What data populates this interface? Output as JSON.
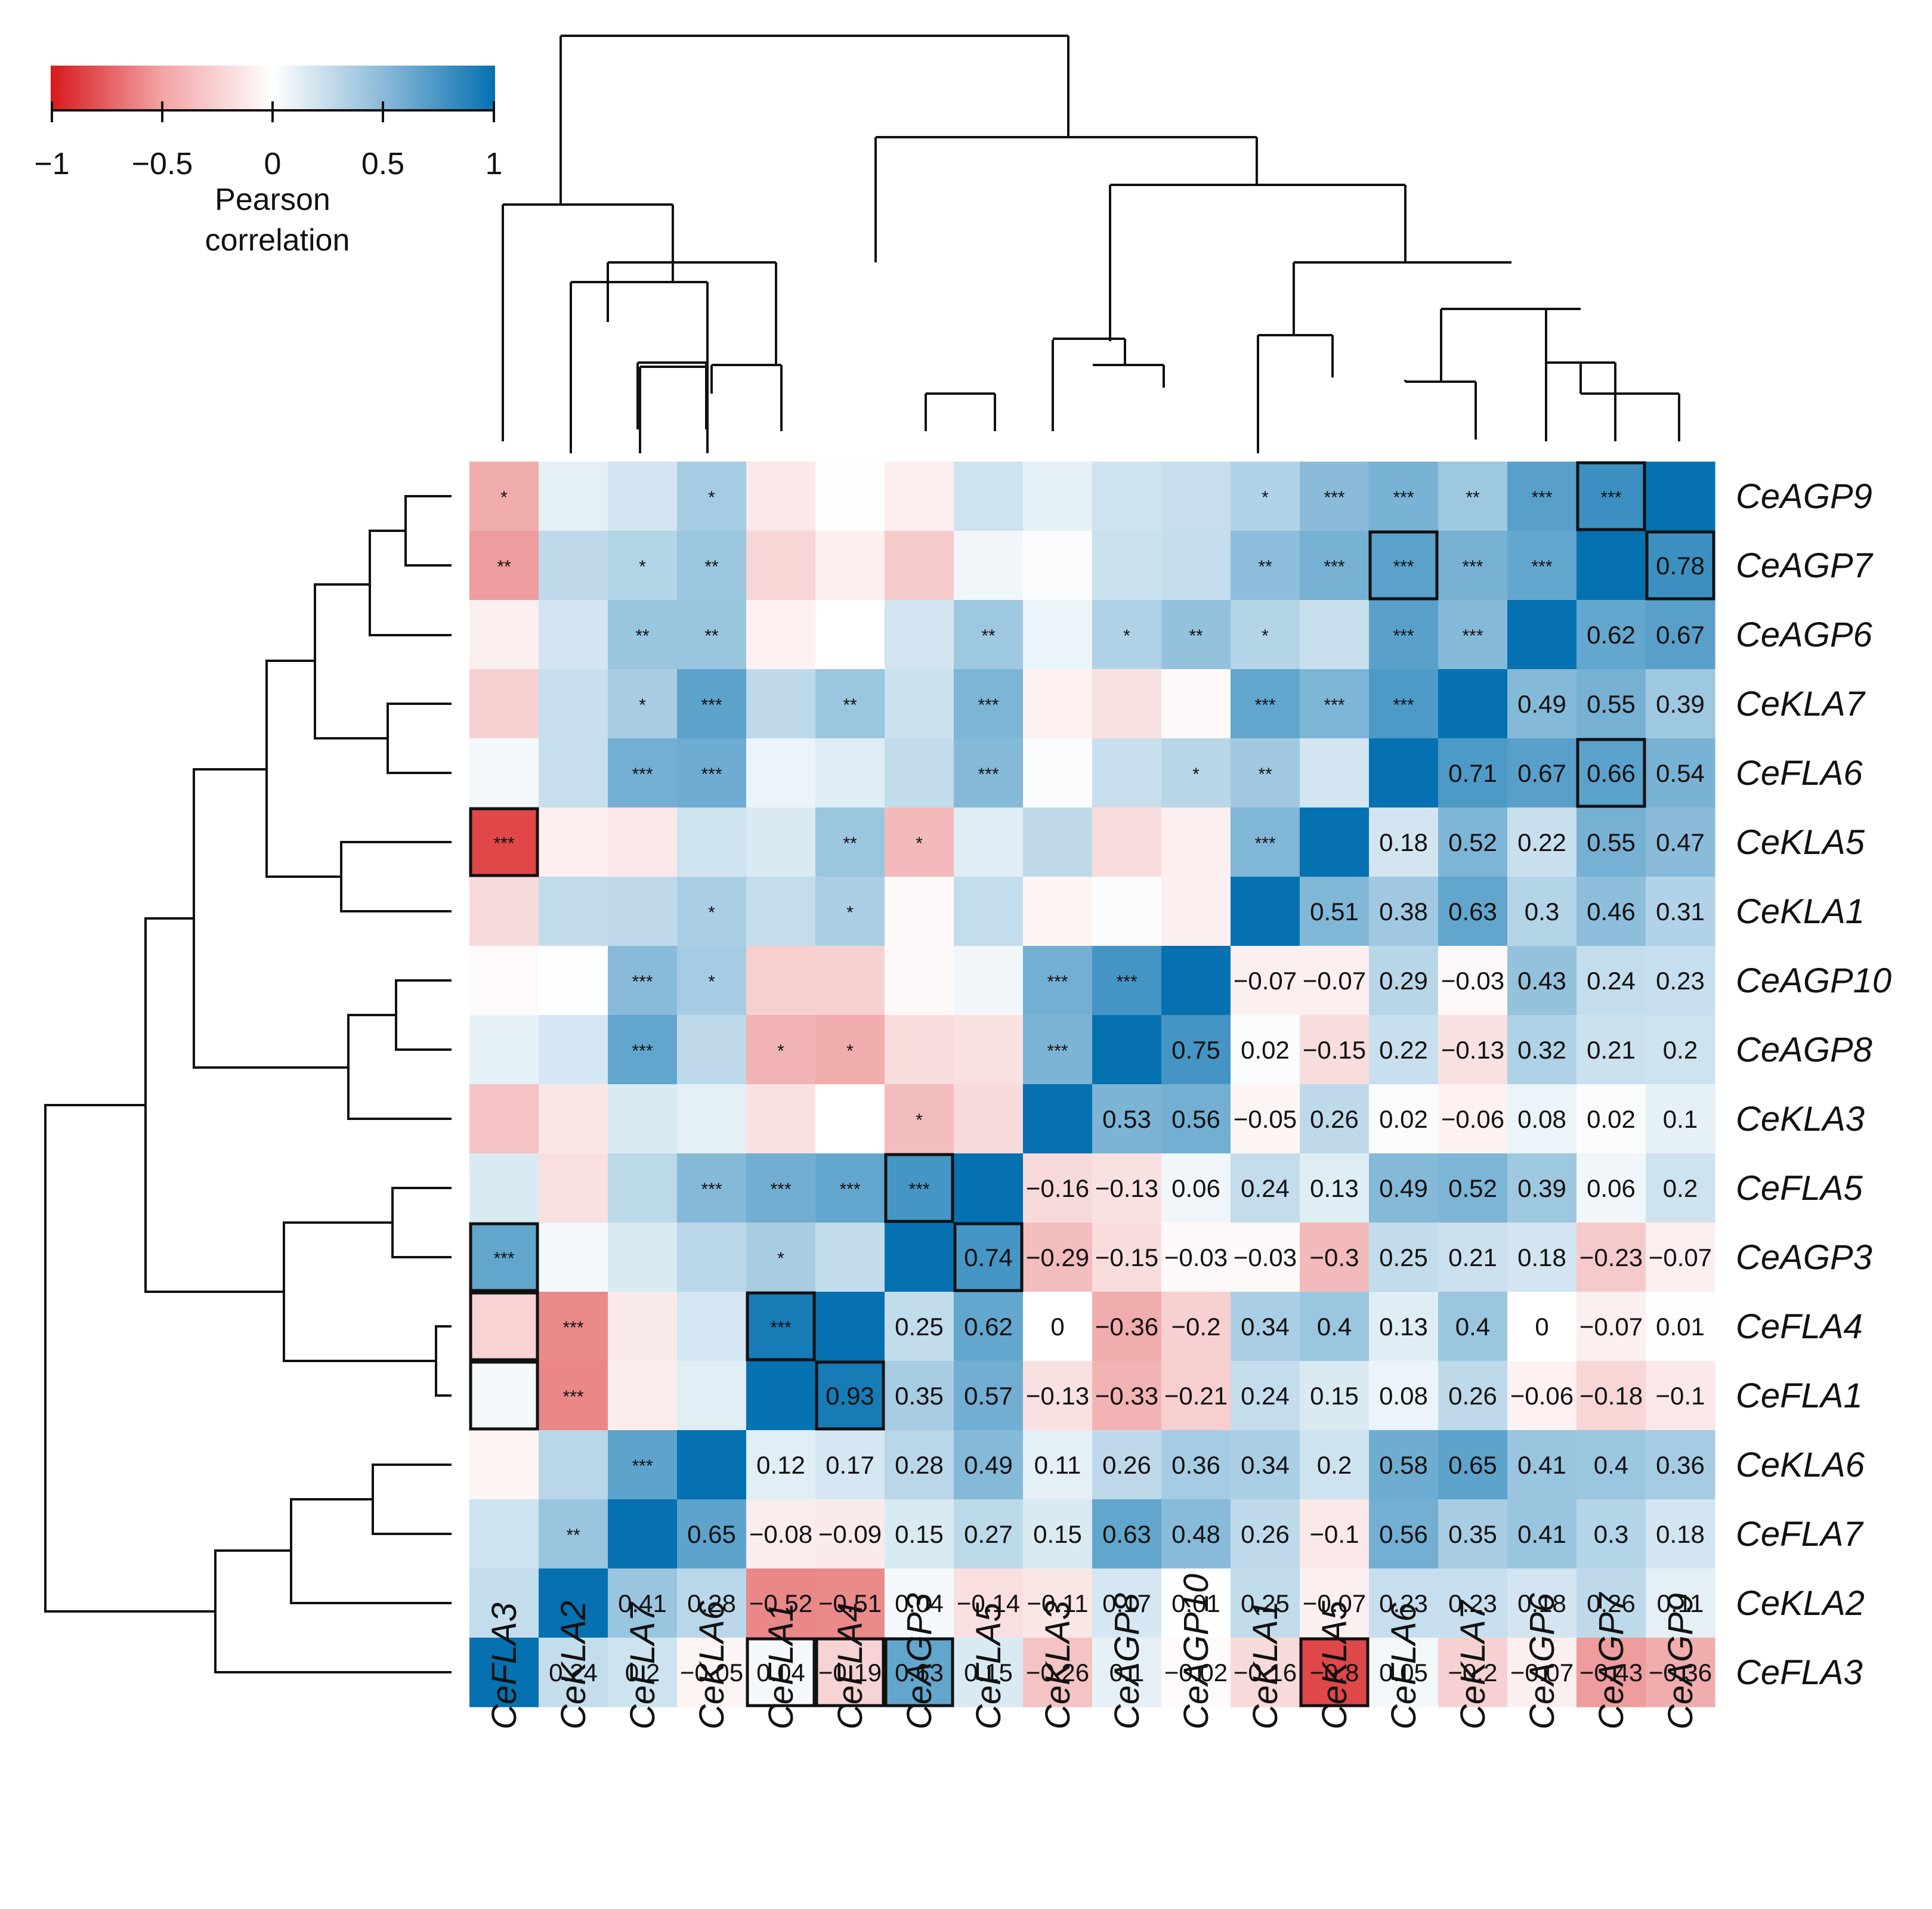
{
  "chart_data": {
    "type": "heatmap",
    "columns": [
      "CeFLA3",
      "CeKLA2",
      "CeFLA7",
      "CeKLA6",
      "CeFLA1",
      "CeFLA4",
      "CeAGP3",
      "CeFLA5",
      "CeKLA3",
      "CeAGP8",
      "CeAGP10",
      "CeKLA1",
      "CeKLA5",
      "CeFLA6",
      "CeKLA7",
      "CeAGP6",
      "CeAGP7",
      "CeAGP9"
    ],
    "rows": [
      "CeAGP9",
      "CeAGP7",
      "CeAGP6",
      "CeKLA7",
      "CeFLA6",
      "CeKLA5",
      "CeKLA1",
      "CeAGP10",
      "CeAGP8",
      "CeKLA3",
      "CeFLA5",
      "CeAGP3",
      "CeFLA4",
      "CeFLA1",
      "CeKLA6",
      "CeFLA7",
      "CeKLA2",
      "CeFLA3"
    ],
    "values": [
      [
        -0.36,
        0.11,
        0.18,
        0.36,
        -0.1,
        0.01,
        -0.07,
        0.2,
        0.1,
        0.2,
        0.23,
        0.31,
        0.47,
        0.54,
        0.39,
        0.67,
        0.78,
        1
      ],
      [
        -0.43,
        0.26,
        0.3,
        0.4,
        -0.18,
        -0.07,
        -0.23,
        0.06,
        0.02,
        0.21,
        0.24,
        0.46,
        0.55,
        0.66,
        0.55,
        0.62,
        1,
        0.78
      ],
      [
        -0.07,
        0.18,
        0.41,
        0.41,
        -0.06,
        0,
        0.18,
        0.39,
        0.08,
        0.32,
        0.43,
        0.3,
        0.22,
        0.67,
        0.49,
        1,
        0.62,
        0.67
      ],
      [
        -0.2,
        0.23,
        0.35,
        0.65,
        0.26,
        0.4,
        0.21,
        0.52,
        -0.06,
        -0.13,
        -0.03,
        0.63,
        0.52,
        0.71,
        1,
        0.49,
        0.55,
        0.39
      ],
      [
        0.05,
        0.23,
        0.56,
        0.58,
        0.08,
        0.13,
        0.25,
        0.49,
        0.02,
        0.22,
        0.29,
        0.38,
        0.18,
        1,
        0.71,
        0.67,
        0.66,
        0.54
      ],
      [
        -0.8,
        -0.07,
        -0.1,
        0.2,
        0.15,
        0.4,
        -0.3,
        0.13,
        0.26,
        -0.15,
        -0.07,
        0.51,
        1,
        0.18,
        0.52,
        0.22,
        0.55,
        0.47
      ],
      [
        -0.16,
        0.25,
        0.26,
        0.34,
        0.24,
        0.34,
        -0.03,
        0.24,
        -0.05,
        0.02,
        -0.07,
        1,
        0.51,
        0.38,
        0.63,
        0.3,
        0.46,
        0.31
      ],
      [
        -0.02,
        0.01,
        0.48,
        0.36,
        -0.21,
        -0.2,
        -0.03,
        0.06,
        0.56,
        0.75,
        1,
        -0.07,
        -0.07,
        0.29,
        -0.03,
        0.43,
        0.24,
        0.23
      ],
      [
        0.1,
        0.17,
        0.63,
        0.26,
        -0.33,
        -0.36,
        -0.15,
        -0.13,
        0.53,
        1,
        0.75,
        0.02,
        -0.15,
        0.22,
        -0.13,
        0.32,
        0.21,
        0.2
      ],
      [
        -0.26,
        -0.11,
        0.15,
        0.11,
        -0.13,
        0,
        -0.29,
        -0.16,
        1,
        0.53,
        0.56,
        -0.05,
        0.26,
        0.02,
        -0.06,
        0.08,
        0.02,
        0.1
      ],
      [
        0.15,
        -0.14,
        0.27,
        0.49,
        0.57,
        0.62,
        0.74,
        1,
        -0.16,
        -0.13,
        0.06,
        0.24,
        0.13,
        0.49,
        0.52,
        0.39,
        0.06,
        0.2
      ],
      [
        0.63,
        0.04,
        0.15,
        0.28,
        0.35,
        0.25,
        1,
        0.74,
        -0.29,
        -0.15,
        -0.03,
        -0.03,
        -0.3,
        0.25,
        0.21,
        0.18,
        -0.23,
        -0.07
      ],
      [
        -0.19,
        -0.51,
        -0.09,
        0.17,
        0.93,
        1,
        0.25,
        0.62,
        0,
        -0.36,
        -0.2,
        0.34,
        0.4,
        0.13,
        0.4,
        0,
        -0.07,
        0.01
      ],
      [
        0.04,
        -0.52,
        -0.08,
        0.12,
        1,
        0.93,
        0.35,
        0.57,
        -0.13,
        -0.33,
        -0.21,
        0.24,
        0.15,
        0.08,
        0.26,
        -0.06,
        -0.18,
        -0.1
      ],
      [
        -0.05,
        0.28,
        0.65,
        1,
        0.12,
        0.17,
        0.28,
        0.49,
        0.11,
        0.26,
        0.36,
        0.34,
        0.2,
        0.58,
        0.65,
        0.41,
        0.4,
        0.36
      ],
      [
        0.2,
        0.41,
        1,
        0.65,
        -0.08,
        -0.09,
        0.15,
        0.27,
        0.15,
        0.63,
        0.48,
        0.26,
        -0.1,
        0.56,
        0.35,
        0.41,
        0.3,
        0.18
      ],
      [
        0.24,
        1,
        0.41,
        0.28,
        -0.52,
        -0.51,
        0.04,
        -0.14,
        -0.11,
        0.17,
        0.01,
        0.25,
        -0.07,
        0.23,
        0.23,
        0.18,
        0.26,
        0.11
      ],
      [
        1,
        0.24,
        0.2,
        -0.05,
        0.04,
        -0.19,
        0.63,
        0.15,
        -0.26,
        0.1,
        -0.02,
        -0.16,
        -0.8,
        0.05,
        -0.2,
        -0.07,
        -0.43,
        -0.36
      ]
    ],
    "significance": [
      [
        "*",
        "",
        "",
        "*",
        "",
        "",
        "",
        "",
        "",
        "",
        "",
        "*",
        "***",
        "***",
        "**",
        "***",
        "***",
        ""
      ],
      [
        "**",
        "",
        "*",
        "**",
        "",
        "",
        "",
        "",
        "",
        "",
        "",
        "**",
        "***",
        "***",
        "***",
        "***",
        "",
        ""
      ],
      [
        "",
        "",
        "**",
        "**",
        "",
        "",
        "",
        "**",
        "",
        "*",
        "**",
        "*",
        "",
        "***",
        "***",
        "",
        "",
        ""
      ],
      [
        "",
        "",
        "*",
        "***",
        "",
        "**",
        "",
        "***",
        "",
        "",
        "",
        "***",
        "***",
        "***",
        "",
        "",
        "",
        ""
      ],
      [
        "",
        "",
        "***",
        "***",
        "",
        "",
        "",
        "***",
        "",
        "",
        "*",
        "**",
        "",
        "",
        "",
        "",
        "",
        ""
      ],
      [
        "***",
        "",
        "",
        "",
        "",
        "**",
        "*",
        "",
        "",
        "",
        "",
        "***",
        "",
        "",
        "",
        "",
        "",
        ""
      ],
      [
        "",
        "",
        "",
        "*",
        "",
        "*",
        "",
        "",
        "",
        "",
        "",
        "",
        "",
        "",
        "",
        "",
        "",
        ""
      ],
      [
        "",
        "",
        "***",
        "*",
        "",
        "",
        "",
        "",
        "***",
        "***",
        "",
        "",
        "",
        "",
        "",
        "",
        "",
        ""
      ],
      [
        "",
        "",
        "***",
        "",
        "*",
        "*",
        "",
        "",
        "***",
        "",
        "",
        "",
        "",
        "",
        "",
        "",
        "",
        ""
      ],
      [
        "",
        "",
        "",
        "",
        "",
        "",
        "*",
        "",
        "",
        "",
        "",
        "",
        "",
        "",
        "",
        "",
        "",
        ""
      ],
      [
        "",
        "",
        "",
        "***",
        "***",
        "***",
        "***",
        "",
        "",
        "",
        "",
        "",
        "",
        "",
        "",
        "",
        "",
        ""
      ],
      [
        "***",
        "",
        "",
        "",
        "*",
        "",
        "",
        "",
        "",
        "",
        "",
        "",
        "",
        "",
        "",
        "",
        "",
        ""
      ],
      [
        "",
        "***",
        "",
        "",
        "***",
        "",
        "",
        "",
        "",
        "",
        "",
        "",
        "",
        "",
        "",
        "",
        "",
        ""
      ],
      [
        "",
        "***",
        "",
        "",
        "",
        "",
        "",
        "",
        "",
        "",
        "",
        "",
        "",
        "",
        "",
        "",
        "",
        ""
      ],
      [
        "",
        "",
        "***",
        "",
        "",
        "",
        "",
        "",
        "",
        "",
        "",
        "",
        "",
        "",
        "",
        "",
        "",
        ""
      ],
      [
        "",
        "**",
        "",
        "",
        "",
        "",
        "",
        "",
        "",
        "",
        "",
        "",
        "",
        "",
        "",
        "",
        "",
        ""
      ],
      [
        "",
        "",
        "",
        "",
        "",
        "",
        "",
        "",
        "",
        "",
        "",
        "",
        "",
        "",
        "",
        "",
        "",
        ""
      ],
      [
        "",
        "",
        "",
        "",
        "",
        "",
        "",
        "",
        "",
        "",
        "",
        "",
        "",
        "",
        "",
        "",
        "",
        ""
      ]
    ],
    "highlighted_cells": [
      [
        0,
        16
      ],
      [
        1,
        13
      ],
      [
        1,
        17
      ],
      [
        4,
        16
      ],
      [
        5,
        0
      ],
      [
        10,
        6
      ],
      [
        11,
        0
      ],
      [
        11,
        7
      ],
      [
        12,
        0
      ],
      [
        12,
        4
      ],
      [
        13,
        0
      ],
      [
        13,
        5
      ],
      [
        17,
        4
      ],
      [
        17,
        5
      ],
      [
        17,
        6
      ],
      [
        17,
        12
      ]
    ],
    "color_scale": {
      "min": -1,
      "max": 1,
      "low_color": "#d7191c",
      "mid_color": "#ffffff",
      "high_color": "#0571b0",
      "ticks": [
        "−1",
        "−0.5",
        "0",
        "0.5",
        "1"
      ]
    },
    "legend": {
      "title_line1": "Pearson",
      "title_line2": "correlation",
      "placement": "top-left"
    },
    "dendrogram_column_order_leaves": [
      "CeFLA3",
      "CeKLA2",
      "CeFLA7",
      "CeKLA6",
      "CeFLA1",
      "CeFLA4",
      "CeAGP3",
      "CeFLA5",
      "CeKLA3",
      "CeAGP8",
      "CeAGP10",
      "CeKLA1",
      "CeKLA5",
      "CeFLA6",
      "CeKLA7",
      "CeAGP6",
      "CeAGP7",
      "CeAGP9"
    ]
  }
}
